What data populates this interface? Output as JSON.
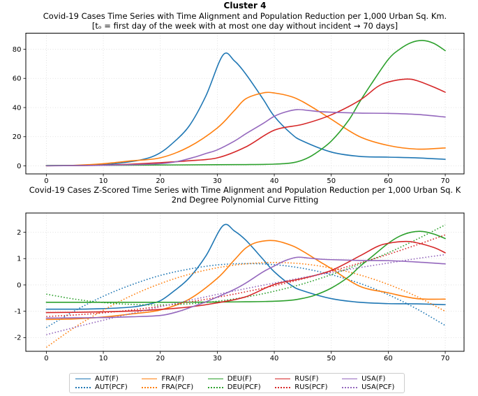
{
  "figure": {
    "suptitle": "Cluster 4"
  },
  "chart_data": [
    {
      "type": "line",
      "title": "Covid-19 Cases Time Series with Time Alignment and Population Reduction per 1,000 Urban Sq. Km.",
      "subtitle": "[tₒ = first day of the week with at most one day without incident → 70 days]",
      "xlabel": "",
      "ylabel": "",
      "xlim": [
        -3.6,
        73.3
      ],
      "ylim": [
        -5.5,
        91
      ],
      "xticks": [
        0,
        10,
        20,
        30,
        40,
        50,
        60,
        70
      ],
      "yticks": [
        0,
        20,
        40,
        60,
        80
      ],
      "grid": true,
      "legend_position": "none",
      "series": [
        {
          "name": "AUT(F)",
          "color": "#1f77b4",
          "style": "solid",
          "x": [
            0,
            5,
            10,
            15,
            18,
            20,
            22,
            25,
            28,
            31,
            33,
            35,
            38,
            40,
            43,
            45,
            50,
            55,
            60,
            65,
            70
          ],
          "y": [
            0.1,
            0.3,
            0.8,
            3,
            5.5,
            9,
            15,
            27,
            48,
            76,
            72,
            63,
            46,
            34,
            22,
            17,
            9.5,
            6.5,
            6,
            5.5,
            4.5
          ]
        },
        {
          "name": "FRA(F)",
          "color": "#ff7f0e",
          "style": "solid",
          "x": [
            0,
            5,
            10,
            15,
            20,
            25,
            30,
            33,
            35,
            38,
            40,
            43,
            45,
            48,
            50,
            55,
            60,
            65,
            70
          ],
          "y": [
            0.1,
            0.4,
            1.5,
            3.5,
            5.5,
            13,
            26,
            38,
            46,
            50,
            50,
            47.5,
            44,
            37,
            32,
            20,
            14,
            11.5,
            12.3
          ]
        },
        {
          "name": "DEU(F)",
          "color": "#2ca02c",
          "style": "solid",
          "x": [
            0,
            10,
            20,
            30,
            35,
            40,
            43,
            45,
            47,
            50,
            53,
            55,
            57,
            60,
            62,
            64,
            66,
            68,
            70
          ],
          "y": [
            0.3,
            0.4,
            0.6,
            0.8,
            0.9,
            1.2,
            2,
            4,
            8,
            17,
            31,
            44,
            56,
            73,
            80,
            84.5,
            86,
            84,
            79
          ]
        },
        {
          "name": "RUS(F)",
          "color": "#d62728",
          "style": "solid",
          "x": [
            0,
            5,
            10,
            15,
            20,
            25,
            30,
            35,
            40,
            45,
            50,
            55,
            58,
            60,
            63,
            65,
            68,
            70
          ],
          "y": [
            0.1,
            0.2,
            0.5,
            1.2,
            2.2,
            3.5,
            5.5,
            13,
            24.5,
            28.5,
            35,
            45,
            54,
            57.5,
            59.5,
            58.5,
            54,
            50.5
          ]
        },
        {
          "name": "USA(F)",
          "color": "#9467bd",
          "style": "solid",
          "x": [
            0,
            5,
            10,
            15,
            20,
            23,
            26,
            28,
            30,
            33,
            35,
            38,
            40,
            42,
            44,
            46,
            48,
            50,
            55,
            60,
            65,
            70
          ],
          "y": [
            0.1,
            0.2,
            0.4,
            0.8,
            1.5,
            3,
            6,
            8.5,
            11,
            17,
            22,
            29,
            34,
            37,
            38.6,
            38,
            37.2,
            36.8,
            36.2,
            36,
            35.3,
            33.5
          ]
        }
      ]
    },
    {
      "type": "line",
      "title": "Covid-19 Cases Z-Scored Time Series with Time Alignment and Population Reduction per 1,000 Urban Sq. K",
      "subtitle": "2nd Degree Polynomial Curve Fitting",
      "xlabel": "",
      "ylabel": "",
      "xlim": [
        -3.6,
        73.3
      ],
      "ylim": [
        -2.52,
        2.73
      ],
      "xticks": [
        0,
        10,
        20,
        30,
        40,
        50,
        60,
        70
      ],
      "yticks": [
        -2,
        -1,
        0,
        1,
        2
      ],
      "grid": true,
      "legend_position": "below",
      "series": [
        {
          "name": "AUT(F)",
          "color": "#1f77b4",
          "style": "solid",
          "x": [
            0,
            5,
            10,
            15,
            18,
            20,
            22,
            25,
            28,
            31,
            33,
            35,
            38,
            40,
            43,
            45,
            50,
            55,
            60,
            65,
            70
          ],
          "y": [
            -0.92,
            -0.92,
            -0.9,
            -0.84,
            -0.73,
            -0.6,
            -0.3,
            0.25,
            1.1,
            2.25,
            2.05,
            1.7,
            0.98,
            0.5,
            -0.02,
            -0.22,
            -0.52,
            -0.66,
            -0.71,
            -0.72,
            -0.75
          ]
        },
        {
          "name": "AUT(PCF)",
          "color": "#1f77b4",
          "style": "dotted",
          "x": [
            0,
            5,
            10,
            15,
            20,
            25,
            30,
            35,
            40,
            45,
            50,
            55,
            60,
            65,
            70
          ],
          "y": [
            -1.62,
            -0.98,
            -0.43,
            0.01,
            0.36,
            0.6,
            0.76,
            0.81,
            0.77,
            0.63,
            0.39,
            0.06,
            -0.37,
            -0.91,
            -1.54
          ]
        },
        {
          "name": "FRA(F)",
          "color": "#ff7f0e",
          "style": "solid",
          "x": [
            0,
            5,
            10,
            15,
            20,
            25,
            30,
            33,
            35,
            37,
            40,
            43,
            45,
            48,
            50,
            55,
            60,
            65,
            70
          ],
          "y": [
            -1.31,
            -1.29,
            -1.22,
            -1.1,
            -0.95,
            -0.55,
            0.25,
            0.95,
            1.4,
            1.62,
            1.68,
            1.5,
            1.28,
            0.88,
            0.62,
            -0.05,
            -0.3,
            -0.52,
            -0.54
          ]
        },
        {
          "name": "FRA(PCF)",
          "color": "#ff7f0e",
          "style": "dotted",
          "x": [
            0,
            5,
            10,
            15,
            20,
            25,
            30,
            35,
            40,
            45,
            50,
            55,
            60,
            65,
            70
          ],
          "y": [
            -2.37,
            -1.61,
            -0.96,
            -0.4,
            0.05,
            0.4,
            0.65,
            0.8,
            0.85,
            0.8,
            0.64,
            0.38,
            0.02,
            -0.44,
            -1.0
          ]
        },
        {
          "name": "DEU(F)",
          "color": "#2ca02c",
          "style": "solid",
          "x": [
            0,
            10,
            20,
            30,
            35,
            40,
            43,
            45,
            47,
            50,
            53,
            55,
            57,
            60,
            62,
            64,
            66,
            68,
            70
          ],
          "y": [
            -0.66,
            -0.66,
            -0.66,
            -0.65,
            -0.64,
            -0.62,
            -0.58,
            -0.51,
            -0.4,
            -0.12,
            0.3,
            0.7,
            1.05,
            1.58,
            1.85,
            2.0,
            2.03,
            1.93,
            1.76
          ]
        },
        {
          "name": "DEU(PCF)",
          "color": "#2ca02c",
          "style": "dotted",
          "x": [
            0,
            5,
            10,
            15,
            20,
            25,
            30,
            35,
            40,
            45,
            50,
            55,
            60,
            65,
            70
          ],
          "y": [
            -0.35,
            -0.54,
            -0.67,
            -0.74,
            -0.76,
            -0.72,
            -0.62,
            -0.46,
            -0.24,
            0.04,
            0.39,
            0.79,
            1.22,
            1.73,
            2.28
          ]
        },
        {
          "name": "RUS(F)",
          "color": "#d62728",
          "style": "solid",
          "x": [
            0,
            5,
            10,
            15,
            20,
            25,
            30,
            35,
            40,
            45,
            50,
            55,
            58,
            60,
            63,
            65,
            68,
            70
          ],
          "y": [
            -1.05,
            -1.04,
            -1.02,
            -0.99,
            -0.93,
            -0.84,
            -0.68,
            -0.45,
            0.02,
            0.25,
            0.55,
            1.1,
            1.45,
            1.58,
            1.65,
            1.6,
            1.42,
            1.22
          ]
        },
        {
          "name": "RUS(PCF)",
          "color": "#d62728",
          "style": "dotted",
          "x": [
            0,
            5,
            10,
            15,
            20,
            25,
            30,
            35,
            40,
            45,
            50,
            55,
            60,
            65,
            70
          ],
          "y": [
            -1.2,
            -1.14,
            -1.06,
            -0.95,
            -0.81,
            -0.65,
            -0.47,
            -0.26,
            -0.03,
            0.23,
            0.52,
            0.83,
            1.16,
            1.52,
            1.9
          ]
        },
        {
          "name": "USA(F)",
          "color": "#9467bd",
          "style": "solid",
          "x": [
            0,
            5,
            10,
            15,
            20,
            23,
            26,
            28,
            30,
            33,
            35,
            38,
            40,
            42,
            44,
            46,
            48,
            50,
            55,
            60,
            65,
            70
          ],
          "y": [
            -1.26,
            -1.25,
            -1.24,
            -1.21,
            -1.16,
            -1.02,
            -0.8,
            -0.64,
            -0.46,
            -0.17,
            0.07,
            0.49,
            0.72,
            0.93,
            1.05,
            1.02,
            0.98,
            0.96,
            0.93,
            0.92,
            0.87,
            0.8
          ]
        },
        {
          "name": "USA(PCF)",
          "color": "#9467bd",
          "style": "dotted",
          "x": [
            0,
            5,
            10,
            15,
            20,
            25,
            30,
            35,
            40,
            45,
            50,
            55,
            60,
            65,
            70
          ],
          "y": [
            -1.89,
            -1.61,
            -1.34,
            -1.08,
            -0.83,
            -0.59,
            -0.36,
            -0.14,
            0.07,
            0.28,
            0.47,
            0.66,
            0.83,
            1.0,
            1.15
          ]
        }
      ]
    }
  ],
  "legend": {
    "entries": [
      {
        "label": "AUT(F)",
        "color": "#1f77b4",
        "style": "solid"
      },
      {
        "label": "AUT(PCF)",
        "color": "#1f77b4",
        "style": "dotted"
      },
      {
        "label": "FRA(F)",
        "color": "#ff7f0e",
        "style": "solid"
      },
      {
        "label": "FRA(PCF)",
        "color": "#ff7f0e",
        "style": "dotted"
      },
      {
        "label": "DEU(F)",
        "color": "#2ca02c",
        "style": "solid"
      },
      {
        "label": "DEU(PCF)",
        "color": "#2ca02c",
        "style": "dotted"
      },
      {
        "label": "RUS(F)",
        "color": "#d62728",
        "style": "solid"
      },
      {
        "label": "RUS(PCF)",
        "color": "#d62728",
        "style": "dotted"
      },
      {
        "label": "USA(F)",
        "color": "#9467bd",
        "style": "solid"
      },
      {
        "label": "USA(PCF)",
        "color": "#9467bd",
        "style": "dotted"
      }
    ]
  },
  "colors": {
    "grid": "#d9d9d9",
    "spine": "#000000",
    "legend_border": "#cccccc"
  }
}
